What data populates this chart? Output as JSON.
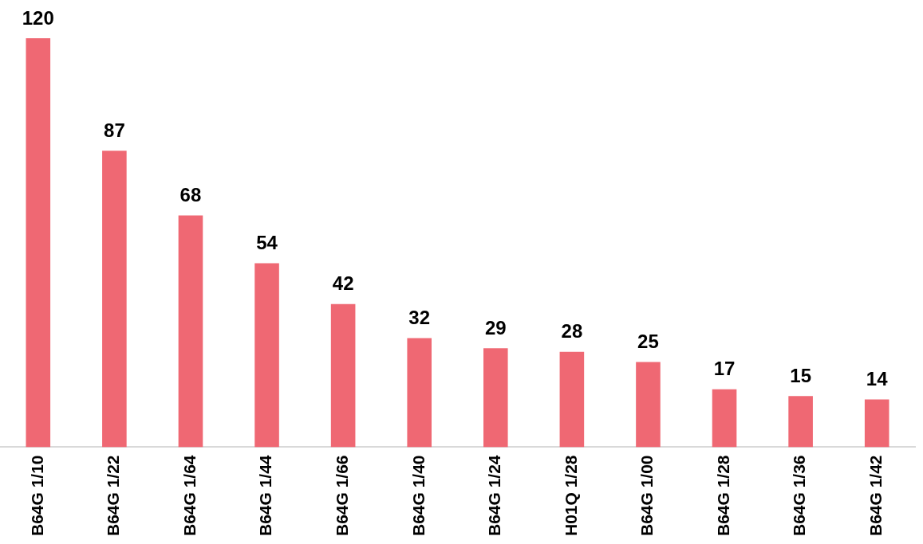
{
  "chart_data": {
    "type": "bar",
    "categories": [
      "B64G 1/10",
      "B64G 1/22",
      "B64G 1/64",
      "B64G 1/44",
      "B64G 1/66",
      "B64G 1/40",
      "B64G 1/24",
      "H01Q 1/28",
      "B64G 1/00",
      "B64G 1/28",
      "B64G 1/36",
      "B64G 1/42"
    ],
    "values": [
      120,
      87,
      68,
      54,
      42,
      32,
      29,
      28,
      25,
      17,
      15,
      14
    ],
    "color": "#ef6873",
    "data_labels": true,
    "grid": false,
    "legend": false
  }
}
